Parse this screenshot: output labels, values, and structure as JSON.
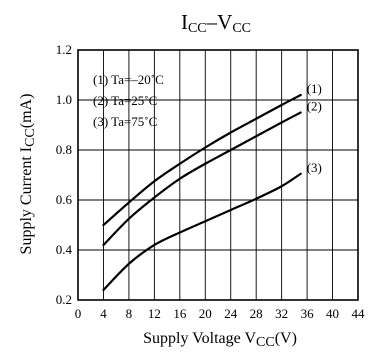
{
  "chart_data": {
    "type": "line",
    "title": {
      "main_1": "I",
      "sub_1": "CC",
      "dash": "–V",
      "sub_2": "CC"
    },
    "xlabel": {
      "text": "Supply Voltage  V",
      "sub": "CC",
      "unit": "(V)"
    },
    "ylabel": {
      "text": "Supply Current  I",
      "sub": "CC",
      "unit": "(mA)"
    },
    "xlim": [
      0,
      44
    ],
    "ylim": [
      0.2,
      1.2
    ],
    "xticks": [
      0,
      4,
      8,
      12,
      16,
      20,
      24,
      28,
      32,
      36,
      40,
      44
    ],
    "yticks": [
      0.2,
      0.4,
      0.6,
      0.8,
      1.0,
      1.2
    ],
    "ytick_labels": [
      "0.2",
      "0.4",
      "0.6",
      "0.8",
      "1.0",
      "1.2"
    ],
    "grid": true,
    "legend_text": [
      "(1) Ta=–20˚C",
      "(2) Ta=25˚C",
      "(3) Ta=75˚C"
    ],
    "series": [
      {
        "label": "(1)",
        "x": [
          4,
          8,
          12,
          16,
          20,
          24,
          28,
          32,
          35
        ],
        "y": [
          0.5,
          0.59,
          0.675,
          0.745,
          0.81,
          0.87,
          0.925,
          0.98,
          1.02
        ]
      },
      {
        "label": "(2)",
        "x": [
          4,
          8,
          12,
          16,
          20,
          24,
          28,
          32,
          35
        ],
        "y": [
          0.42,
          0.525,
          0.61,
          0.685,
          0.745,
          0.8,
          0.855,
          0.91,
          0.95
        ]
      },
      {
        "label": "(3)",
        "x": [
          4,
          8,
          12,
          16,
          20,
          24,
          28,
          32,
          35
        ],
        "y": [
          0.24,
          0.345,
          0.42,
          0.47,
          0.515,
          0.56,
          0.605,
          0.655,
          0.705
        ]
      }
    ],
    "line_color": "#000000",
    "grid_color": "#000000"
  }
}
